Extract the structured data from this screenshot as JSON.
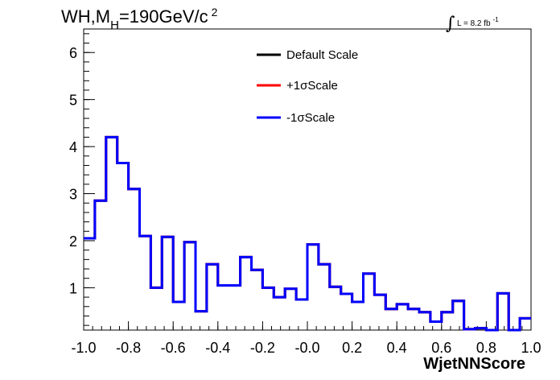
{
  "title": {
    "main": "WH,M",
    "sub": "H",
    "rest": "=190GeV/c",
    "sup": "2"
  },
  "lumi": {
    "symbol": "∫",
    "text": "L = 8.2 fb",
    "sup": "-1"
  },
  "chart_data": {
    "type": "line",
    "style": "step-histogram",
    "xlabel": "WjetNNScore",
    "ylabel": "",
    "xlim": [
      -1.0,
      1.0
    ],
    "ylim": [
      0.1,
      6.5
    ],
    "x_ticks": [
      "-1.0",
      "-0.8",
      "-0.6",
      "-0.4",
      "-0.2",
      "-0.0",
      "0.2",
      "0.4",
      "0.6",
      "0.8",
      "1.0"
    ],
    "x_tick_values": [
      -1.0,
      -0.8,
      -0.6,
      -0.4,
      -0.2,
      0.0,
      0.2,
      0.4,
      0.6,
      0.8,
      1.0
    ],
    "y_ticks": [
      "1",
      "2",
      "3",
      "4",
      "5",
      "6"
    ],
    "y_tick_values": [
      1,
      2,
      3,
      4,
      5,
      6
    ],
    "bin_edges": [
      -1.0,
      -0.95,
      -0.9,
      -0.85,
      -0.8,
      -0.75,
      -0.7,
      -0.65,
      -0.6,
      -0.55,
      -0.5,
      -0.45,
      -0.4,
      -0.35,
      -0.3,
      -0.25,
      -0.2,
      -0.15,
      -0.1,
      -0.05,
      0.0,
      0.05,
      0.1,
      0.15,
      0.2,
      0.25,
      0.3,
      0.35,
      0.4,
      0.45,
      0.5,
      0.55,
      0.6,
      0.65,
      0.7,
      0.75,
      0.8,
      0.85,
      0.9,
      0.95,
      1.0
    ],
    "series": [
      {
        "name": "Default Scale",
        "color": "#000000",
        "values": [
          2.05,
          2.85,
          4.2,
          3.65,
          3.1,
          2.1,
          1.0,
          2.08,
          0.7,
          1.97,
          0.5,
          1.5,
          1.05,
          1.05,
          1.65,
          1.38,
          1.0,
          0.8,
          0.98,
          0.75,
          1.92,
          1.5,
          1.02,
          0.87,
          0.7,
          1.3,
          0.85,
          0.55,
          0.65,
          0.55,
          0.48,
          0.28,
          0.48,
          0.72,
          0.12,
          0.14,
          0.1,
          0.88,
          0.1,
          0.35
        ]
      },
      {
        "name": "+1σScale",
        "color": "#ff0000",
        "values": [
          2.05,
          2.85,
          4.2,
          3.65,
          3.1,
          2.1,
          1.0,
          2.08,
          0.7,
          1.97,
          0.5,
          1.5,
          1.05,
          1.05,
          1.65,
          1.38,
          1.0,
          0.8,
          0.98,
          0.75,
          1.92,
          1.5,
          1.02,
          0.87,
          0.7,
          1.3,
          0.85,
          0.55,
          0.65,
          0.55,
          0.48,
          0.28,
          0.48,
          0.72,
          0.12,
          0.14,
          0.1,
          0.88,
          0.1,
          0.35
        ]
      },
      {
        "name": "-1σScale",
        "color": "#0000ff",
        "values": [
          2.05,
          2.85,
          4.2,
          3.65,
          3.1,
          2.1,
          1.0,
          2.08,
          0.7,
          1.97,
          0.5,
          1.5,
          1.05,
          1.05,
          1.65,
          1.38,
          1.0,
          0.8,
          0.98,
          0.75,
          1.92,
          1.5,
          1.02,
          0.87,
          0.7,
          1.3,
          0.85,
          0.55,
          0.65,
          0.55,
          0.48,
          0.28,
          0.48,
          0.72,
          0.12,
          0.14,
          0.1,
          0.88,
          0.1,
          0.35
        ]
      }
    ],
    "legend": {
      "placement": "top-center",
      "entries": [
        "Default Scale",
        "+1σScale",
        "-1σScale"
      ]
    },
    "grid": false
  }
}
